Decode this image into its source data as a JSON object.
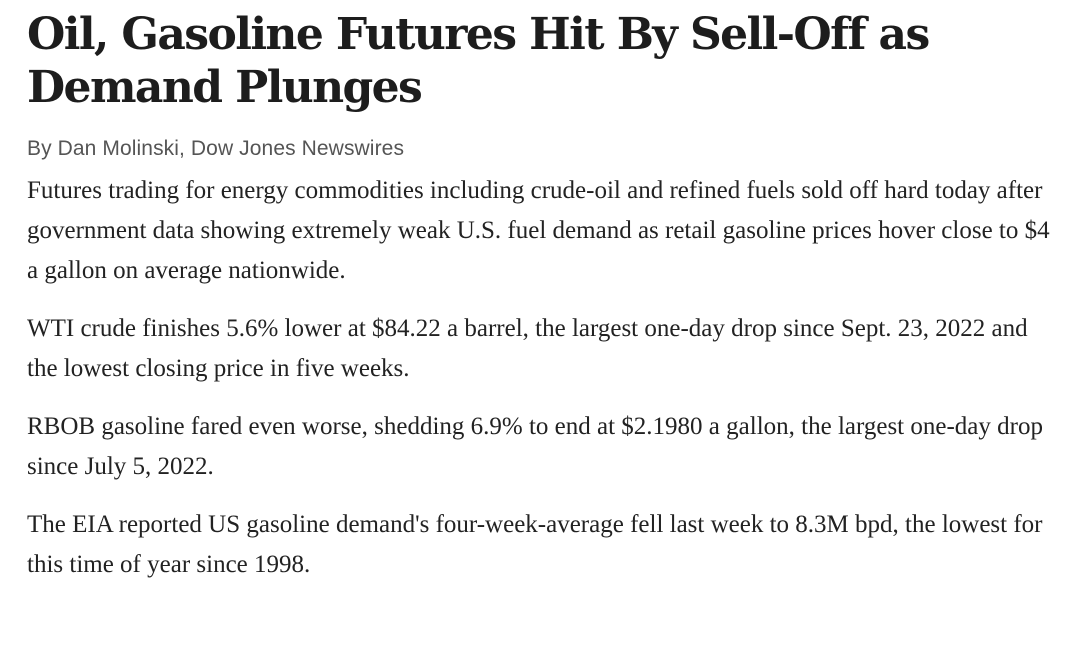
{
  "article": {
    "headline": "Oil, Gasoline Futures Hit By Sell-Off as Demand Plunges",
    "byline": "By Dan Molinski, Dow Jones Newswires",
    "paragraphs": [
      "Futures trading for energy commodities including crude-oil and refined fuels sold off hard today after government data showing extremely weak U.S. fuel demand as retail gasoline prices hover close to $4 a gallon on average nationwide.",
      "WTI crude finishes 5.6% lower at $84.22 a barrel, the largest one-day drop since Sept. 23, 2022 and the lowest closing price in five weeks.",
      "RBOB gasoline fared even worse, shedding 6.9% to end at $2.1980 a gallon, the largest one-day drop since July 5, 2022.",
      "The EIA reported US gasoline demand's four-week-average fell last week to 8.3M bpd, the lowest for this time of year since 1998."
    ]
  }
}
